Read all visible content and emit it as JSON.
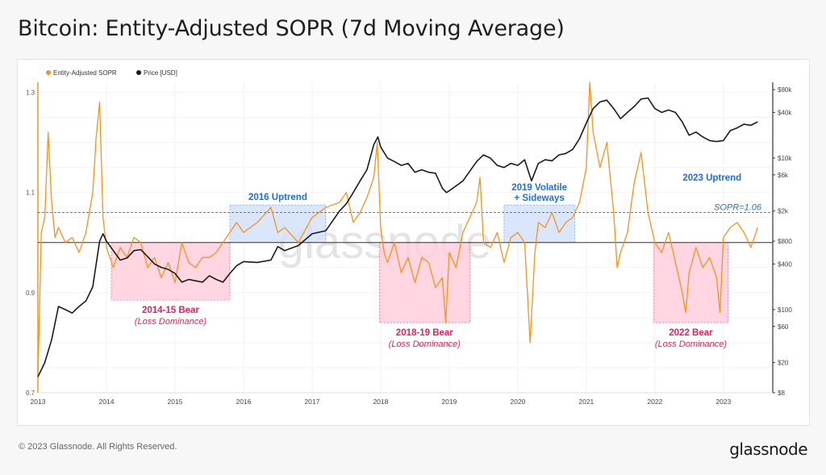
{
  "page": {
    "title": "Bitcoin: Entity-Adjusted SOPR (7d Moving Average)",
    "copyright": "© 2023 Glassnode. All Rights Reserved.",
    "brand": "glassnode",
    "watermark": "glassnode"
  },
  "colors": {
    "sopr": "#f7931a",
    "price": "#1a1a1a",
    "bear_fill": "#ffd0dc",
    "bear_text": "#e0245e",
    "bull_fill": "#d4e2fb",
    "bull_text": "#1f6fe0"
  },
  "chart_data": {
    "type": "line",
    "title": "Bitcoin: Entity-Adjusted SOPR (7d Moving Average)",
    "legend": {
      "placement": "top-left",
      "items": [
        "Entity-Adjusted SOPR",
        "Price [USD]"
      ]
    },
    "x_ticks": [
      "2013",
      "2014",
      "2015",
      "2016",
      "2017",
      "2018",
      "2019",
      "2020",
      "2021",
      "2022",
      "2023"
    ],
    "y_left": {
      "ticks": [
        "1.3",
        "1.1",
        "0.9",
        "0.7"
      ],
      "range": [
        0.7,
        1.32
      ]
    },
    "y_right": {
      "scale": "log",
      "ticks": [
        "$80k",
        "$40k",
        "$10k",
        "$6k",
        "$2k",
        "$800",
        "$400",
        "$100",
        "$60",
        "$20",
        "$8"
      ],
      "range": [
        8,
        100000
      ]
    },
    "series": [
      {
        "name": "Entity-Adjusted SOPR",
        "axis": "left",
        "x": [
          2013.0,
          2013.05,
          2013.1,
          2013.15,
          2013.2,
          2013.25,
          2013.3,
          2013.4,
          2013.5,
          2013.6,
          2013.7,
          2013.8,
          2013.85,
          2013.9,
          2013.95,
          2014.0,
          2014.1,
          2014.2,
          2014.3,
          2014.4,
          2014.5,
          2014.6,
          2014.7,
          2014.8,
          2014.9,
          2015.0,
          2015.1,
          2015.2,
          2015.3,
          2015.4,
          2015.5,
          2015.6,
          2015.7,
          2015.8,
          2015.9,
          2016.0,
          2016.2,
          2016.4,
          2016.5,
          2016.6,
          2016.8,
          2017.0,
          2017.2,
          2017.4,
          2017.5,
          2017.6,
          2017.7,
          2017.8,
          2017.9,
          2017.95,
          2018.0,
          2018.05,
          2018.1,
          2018.2,
          2018.3,
          2018.4,
          2018.5,
          2018.6,
          2018.7,
          2018.8,
          2018.9,
          2018.95,
          2019.0,
          2019.1,
          2019.2,
          2019.3,
          2019.4,
          2019.45,
          2019.5,
          2019.6,
          2019.7,
          2019.8,
          2019.9,
          2020.0,
          2020.1,
          2020.18,
          2020.25,
          2020.3,
          2020.4,
          2020.5,
          2020.6,
          2020.7,
          2020.8,
          2020.9,
          2021.0,
          2021.05,
          2021.1,
          2021.2,
          2021.3,
          2021.4,
          2021.45,
          2021.5,
          2021.6,
          2021.7,
          2021.8,
          2021.9,
          2022.0,
          2022.1,
          2022.2,
          2022.3,
          2022.4,
          2022.45,
          2022.5,
          2022.6,
          2022.7,
          2022.8,
          2022.9,
          2022.95,
          2023.0,
          2023.1,
          2023.2,
          2023.3,
          2023.4,
          2023.5
        ],
        "y": [
          0.73,
          1.02,
          1.05,
          1.22,
          1.08,
          1.01,
          1.03,
          1.0,
          1.01,
          0.98,
          1.02,
          1.1,
          1.21,
          1.28,
          1.05,
          0.99,
          0.95,
          0.99,
          0.97,
          1.01,
          1.0,
          0.95,
          0.97,
          0.93,
          0.96,
          0.92,
          1.0,
          0.96,
          0.95,
          0.97,
          0.97,
          0.98,
          1.0,
          1.02,
          1.04,
          1.02,
          1.04,
          1.07,
          1.02,
          1.03,
          1.0,
          1.05,
          1.07,
          1.08,
          1.1,
          1.04,
          1.06,
          1.09,
          1.13,
          1.2,
          1.03,
          0.98,
          0.96,
          1.0,
          0.94,
          0.97,
          0.92,
          0.97,
          0.96,
          0.91,
          0.93,
          0.84,
          0.98,
          0.95,
          1.02,
          1.05,
          1.08,
          1.13,
          1.0,
          0.99,
          1.02,
          0.96,
          1.01,
          1.02,
          1.0,
          0.8,
          0.98,
          1.04,
          1.03,
          1.06,
          1.02,
          1.04,
          1.05,
          1.08,
          1.15,
          1.32,
          1.22,
          1.15,
          1.2,
          1.06,
          0.95,
          0.98,
          1.02,
          1.12,
          1.18,
          1.06,
          1.0,
          0.98,
          1.02,
          0.96,
          0.9,
          0.86,
          0.94,
          0.99,
          0.95,
          0.97,
          0.93,
          0.86,
          1.01,
          1.03,
          1.04,
          1.02,
          0.99,
          1.03
        ]
      },
      {
        "name": "Price [USD]",
        "axis": "right",
        "x": [
          2013.0,
          2013.1,
          2013.2,
          2013.3,
          2013.4,
          2013.5,
          2013.6,
          2013.7,
          2013.8,
          2013.9,
          2013.95,
          2014.0,
          2014.1,
          2014.2,
          2014.3,
          2014.4,
          2014.5,
          2014.6,
          2014.7,
          2014.8,
          2014.9,
          2015.0,
          2015.1,
          2015.2,
          2015.3,
          2015.4,
          2015.5,
          2015.6,
          2015.7,
          2015.8,
          2015.9,
          2016.0,
          2016.2,
          2016.4,
          2016.5,
          2016.6,
          2016.8,
          2017.0,
          2017.2,
          2017.4,
          2017.5,
          2017.6,
          2017.7,
          2017.8,
          2017.9,
          2017.96,
          2018.0,
          2018.1,
          2018.2,
          2018.3,
          2018.4,
          2018.5,
          2018.6,
          2018.7,
          2018.8,
          2018.9,
          2018.96,
          2019.0,
          2019.2,
          2019.4,
          2019.5,
          2019.6,
          2019.7,
          2019.8,
          2019.9,
          2020.0,
          2020.1,
          2020.2,
          2020.3,
          2020.4,
          2020.5,
          2020.6,
          2020.7,
          2020.8,
          2020.9,
          2021.0,
          2021.1,
          2021.2,
          2021.3,
          2021.4,
          2021.5,
          2021.6,
          2021.7,
          2021.8,
          2021.9,
          2022.0,
          2022.1,
          2022.2,
          2022.3,
          2022.4,
          2022.5,
          2022.6,
          2022.7,
          2022.8,
          2022.9,
          2023.0,
          2023.1,
          2023.2,
          2023.3,
          2023.4,
          2023.5
        ],
        "y": [
          13,
          20,
          40,
          110,
          100,
          90,
          110,
          130,
          200,
          800,
          1000,
          800,
          600,
          450,
          480,
          600,
          620,
          500,
          400,
          360,
          340,
          300,
          230,
          250,
          240,
          230,
          280,
          250,
          230,
          300,
          380,
          430,
          420,
          450,
          680,
          600,
          700,
          1000,
          1100,
          2000,
          2500,
          3500,
          5000,
          7000,
          15000,
          19000,
          14000,
          10000,
          9000,
          8000,
          8500,
          6500,
          7000,
          6500,
          6300,
          4000,
          3500,
          3700,
          5000,
          9000,
          11000,
          10000,
          8000,
          7500,
          8500,
          8000,
          9500,
          5000,
          8500,
          9500,
          9200,
          11000,
          11500,
          13000,
          18000,
          29000,
          45000,
          55000,
          58000,
          45000,
          33000,
          40000,
          48000,
          60000,
          62000,
          45000,
          40000,
          43000,
          40000,
          30000,
          20000,
          22000,
          19000,
          17000,
          16500,
          17000,
          23000,
          25000,
          28000,
          27000,
          30000
        ]
      }
    ],
    "reference_line": {
      "label": "SOPR=1.06",
      "value": 1.06
    },
    "baseline": 1.0,
    "annotations": [
      {
        "x0": 2014.07,
        "x1": 2015.8,
        "y0": 0.885,
        "y1": 1.0,
        "kind": "bear",
        "title": "2014-15 Bear",
        "subtitle": "(Loss Dominance)"
      },
      {
        "x0": 2015.8,
        "x1": 2017.2,
        "y0": 1.0,
        "y1": 1.075,
        "kind": "bull",
        "title": "2016 Uptrend",
        "subtitle": ""
      },
      {
        "x0": 2017.98,
        "x1": 2019.3,
        "y0": 0.84,
        "y1": 1.0,
        "kind": "bear",
        "title": "2018-19 Bear",
        "subtitle": "(Loss Dominance)"
      },
      {
        "x0": 2019.8,
        "x1": 2020.83,
        "y0": 1.0,
        "y1": 1.075,
        "kind": "bull",
        "title": "2019 Volatile",
        "subtitle": "+ Sideways"
      },
      {
        "x0": 2021.98,
        "x1": 2023.07,
        "y0": 0.84,
        "y1": 1.0,
        "kind": "bear",
        "title": "2022 Bear",
        "subtitle": "(Loss Dominance)"
      },
      {
        "x0": 2023.07,
        "x1": 2023.5,
        "y0": 1.0,
        "y1": 1.075,
        "kind": "bull-label",
        "title": "2023 Uptrend",
        "subtitle": ""
      }
    ]
  }
}
